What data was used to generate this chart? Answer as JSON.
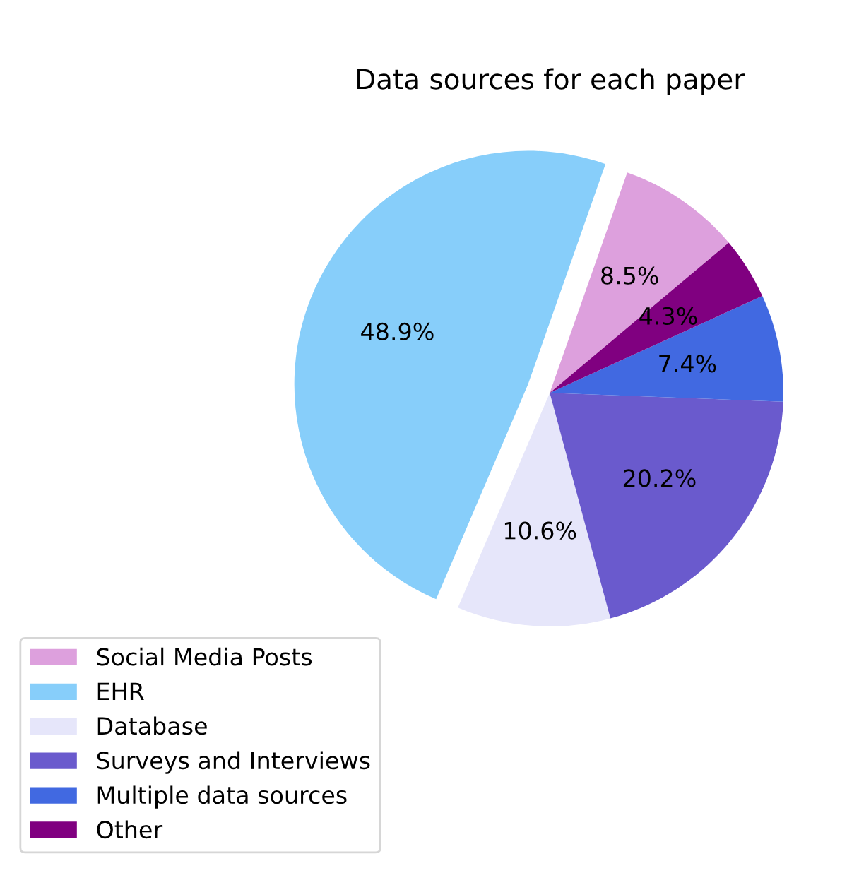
{
  "chart_data": {
    "type": "pie",
    "title": "Data sources for each paper",
    "categories": [
      "Social Media Posts",
      "EHR",
      "Database",
      "Surveys and Interviews",
      "Multiple data sources",
      "Other"
    ],
    "values": [
      8.5,
      48.9,
      10.6,
      20.2,
      7.4,
      4.3
    ],
    "colors": [
      "#dda0dd",
      "#87cefa",
      "#e6e6fa",
      "#6a5acd",
      "#4169e1",
      "#800080"
    ],
    "value_labels": [
      "8.5%",
      "48.9%",
      "10.6%",
      "20.2%",
      "7.4%",
      "4.3%"
    ],
    "legend": "bottom left"
  }
}
